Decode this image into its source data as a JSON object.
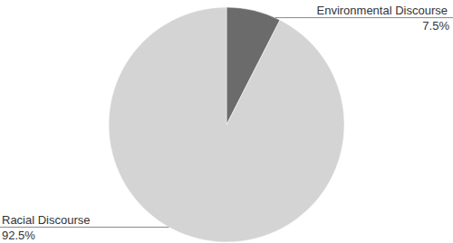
{
  "chart_data": {
    "type": "pie",
    "categories": [
      "Environmental Discourse",
      "Racial Discourse"
    ],
    "values": [
      7.5,
      92.5
    ],
    "value_labels": [
      "7.5%",
      "92.5%"
    ],
    "colors": [
      "#6b6b6b",
      "#d4d4d4"
    ],
    "data_labels": true
  }
}
